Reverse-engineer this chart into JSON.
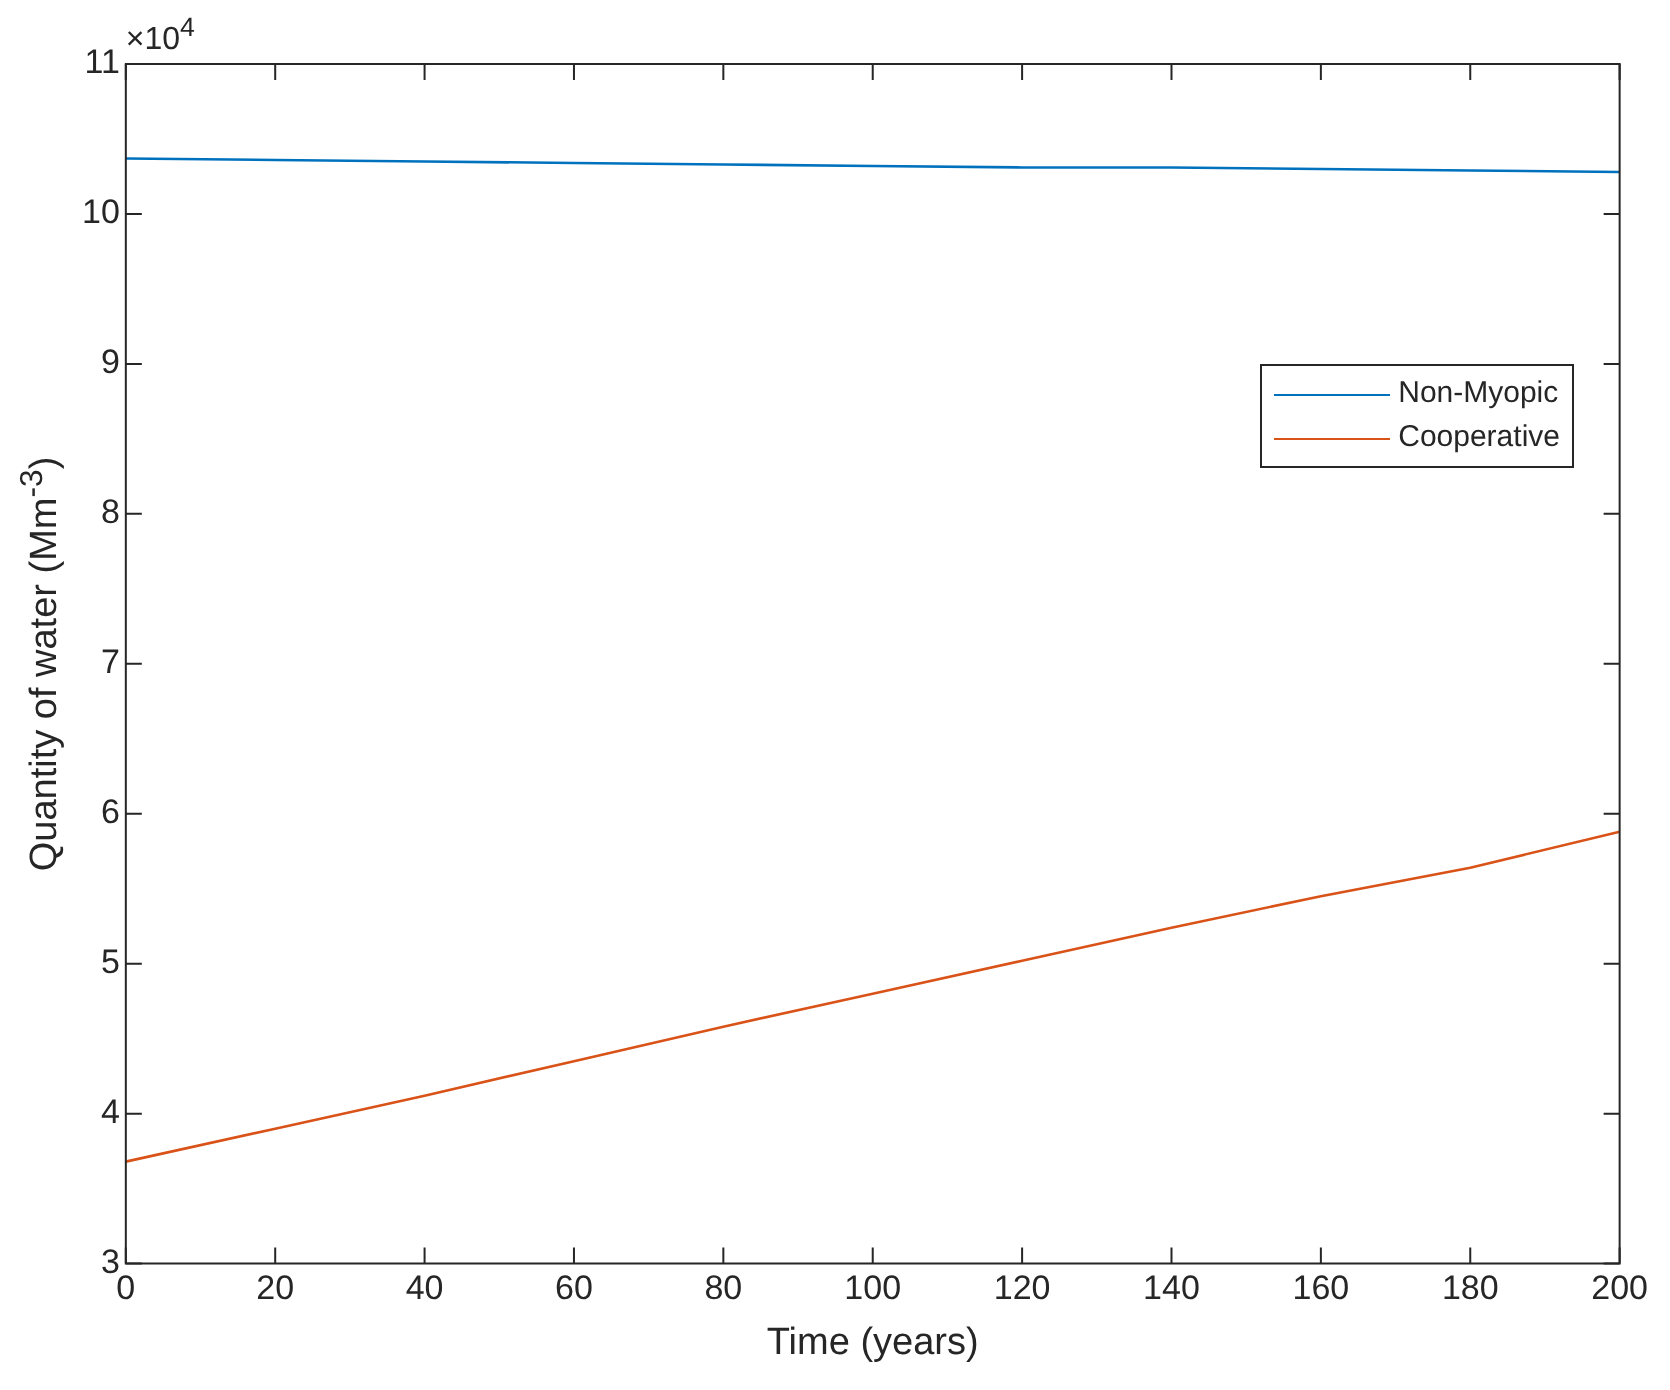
{
  "chart_data": {
    "type": "line",
    "xlabel": "Time (years)",
    "ylabel": "Quantity of water (Mm$^{-3}$)",
    "annotations": [
      "×10$^{4}$"
    ],
    "x": [
      0,
      20,
      40,
      60,
      80,
      100,
      120,
      140,
      160,
      180,
      200
    ],
    "xlim": [
      0,
      200
    ],
    "xticks": [
      0,
      20,
      40,
      60,
      80,
      100,
      120,
      140,
      160,
      180,
      200
    ],
    "ylim": [
      3,
      11
    ],
    "yticks": [
      3,
      4,
      5,
      6,
      7,
      8,
      9,
      10,
      11
    ],
    "series": [
      {
        "name": "Non-Myopic",
        "color": "#0072bd",
        "values": [
          10.37,
          10.36,
          10.35,
          10.34,
          10.33,
          10.32,
          10.31,
          10.31,
          10.3,
          10.29,
          10.28
        ]
      },
      {
        "name": "Cooperative",
        "color": "#d95319",
        "values": [
          3.68,
          3.9,
          4.12,
          4.35,
          4.58,
          4.8,
          5.02,
          5.24,
          5.45,
          5.64,
          5.88
        ]
      }
    ],
    "grid": false,
    "legend": "top right",
    "marker": "none",
    "line_style": "solid"
  }
}
